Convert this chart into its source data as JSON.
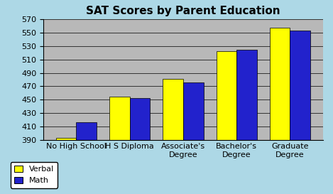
{
  "title": "SAT Scores by Parent Education",
  "categories": [
    "No High School",
    "H S Diploma",
    "Associate's\nDegree",
    "Bachelor's\nDegree",
    "Graduate\nDegree"
  ],
  "verbal": [
    393,
    454,
    481,
    522,
    558
  ],
  "math": [
    416,
    452,
    476,
    525,
    553
  ],
  "verbal_color": "#FFFF00",
  "math_color": "#2222CC",
  "ylim": [
    390,
    570
  ],
  "yticks": [
    390,
    410,
    430,
    450,
    470,
    490,
    510,
    530,
    550,
    570
  ],
  "background_color": "#ADD8E6",
  "plot_bg_color": "#B8B8B8",
  "bar_edge_color": "#000000",
  "legend_labels": [
    "Verbal",
    "Math"
  ],
  "title_fontsize": 11,
  "tick_fontsize": 8,
  "legend_fontsize": 8,
  "bar_width": 0.38
}
